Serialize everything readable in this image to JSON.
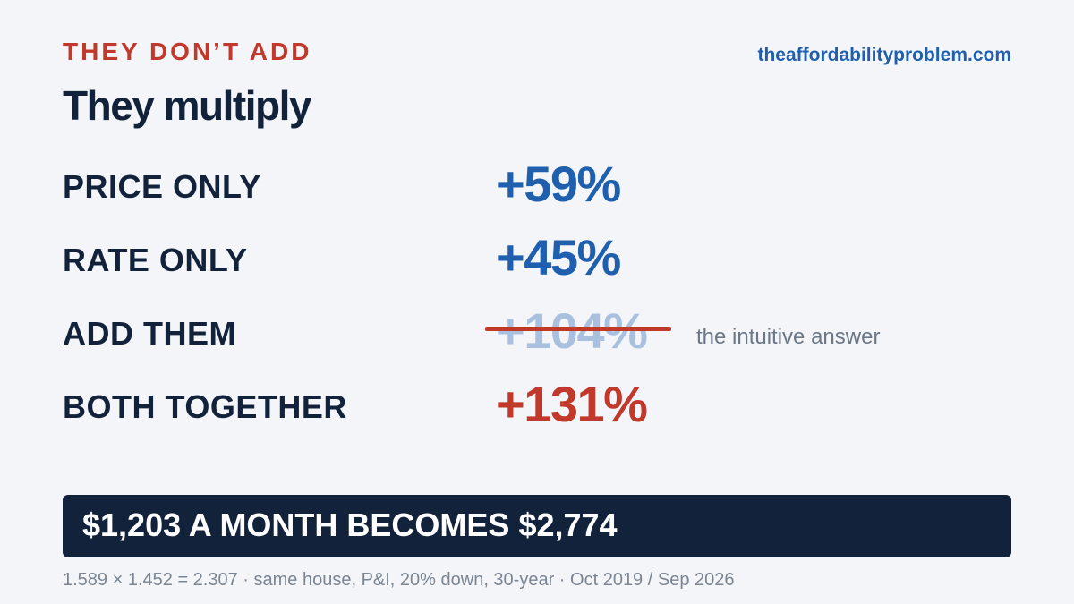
{
  "header": {
    "eyebrow": "THEY DON’T ADD",
    "site": "theaffordabilityproblem.com",
    "title": "They multiply"
  },
  "rows": [
    {
      "label": "PRICE ONLY",
      "value": "+59%",
      "color": "#1f5fae"
    },
    {
      "label": "RATE ONLY",
      "value": "+45%",
      "color": "#1f5fae"
    },
    {
      "label": "ADD THEM",
      "value": "+104%",
      "color": "#a9c1de",
      "struck": true,
      "note": "the intuitive answer"
    },
    {
      "label": "BOTH TOGETHER",
      "value": "+131%",
      "color": "#c0392b"
    }
  ],
  "banner": {
    "text": "$1,203 A MONTH BECOMES $2,774"
  },
  "footnote": "1.589 × 1.452 = 2.307 · same house, P&I, 20% down, 30-year · Oct 2019 / Sep 2026",
  "colors": {
    "accent_red": "#c0392b",
    "accent_blue": "#1f5fae",
    "navy": "#13223b",
    "background": "#f3f5f9"
  }
}
